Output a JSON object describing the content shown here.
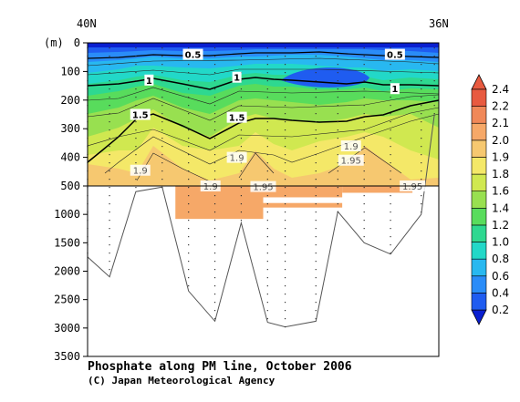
{
  "chart_data": {
    "type": "heatmap",
    "title": "Phosphate along PM line, October 2006",
    "credit": "(C) Japan Meteorological Agency",
    "x_axis": {
      "left_label": "40N",
      "right_label": "36N",
      "range_lat": [
        40,
        36
      ]
    },
    "y_axis": {
      "unit_label": "(m)",
      "upper_ticks": [
        "0",
        "100",
        "200",
        "300",
        "400",
        "500"
      ],
      "upper_range": [
        0,
        500
      ],
      "lower_ticks": [
        "1000",
        "1500",
        "2000",
        "2500",
        "3000",
        "3500"
      ],
      "lower_range": [
        500,
        3500
      ]
    },
    "colorbar": {
      "levels": [
        "0.2",
        "0.4",
        "0.6",
        "0.8",
        "1.0",
        "1.2",
        "1.4",
        "1.6",
        "1.8",
        "1.9",
        "2.0",
        "2.1",
        "2.2",
        "2.4"
      ],
      "colors": [
        "#0a1fd0",
        "#1f5cf0",
        "#2a8cf8",
        "#28b8f0",
        "#22d8c8",
        "#2ed890",
        "#58dc5c",
        "#98e050",
        "#d0e850",
        "#f4e868",
        "#f6c870",
        "#f6a868",
        "#f08858",
        "#e85a40"
      ],
      "has_min_arrow": true,
      "has_max_arrow": true
    },
    "contour_labels": [
      {
        "text": "0.5",
        "lat": 38.8,
        "depth": 40
      },
      {
        "text": "0.5",
        "lat": 36.5,
        "depth": 40
      },
      {
        "text": "1",
        "lat": 39.3,
        "depth": 130
      },
      {
        "text": "1",
        "lat": 38.3,
        "depth": 120
      },
      {
        "text": "1",
        "lat": 36.5,
        "depth": 160
      },
      {
        "text": "1.5",
        "lat": 39.4,
        "depth": 250
      },
      {
        "text": "1.5",
        "lat": 38.3,
        "depth": 260
      },
      {
        "text": "1.9",
        "lat": 39.4,
        "depth": 445
      },
      {
        "text": "1.9",
        "lat": 38.3,
        "depth": 400
      },
      {
        "text": "1.9",
        "lat": 37.0,
        "depth": 360
      },
      {
        "text": "1.95",
        "lat": 37.0,
        "depth": 410
      },
      {
        "text": "1.9",
        "lat": 38.6,
        "depth": 500
      },
      {
        "text": "1.95",
        "lat": 38.0,
        "depth": 510
      },
      {
        "text": "1.95",
        "lat": 36.3,
        "depth": 500
      }
    ],
    "bottom_profile": [
      {
        "lat": 40.0,
        "depth": 1750
      },
      {
        "lat": 39.75,
        "depth": 2100
      },
      {
        "lat": 39.45,
        "depth": 600
      },
      {
        "lat": 39.15,
        "depth": 520
      },
      {
        "lat": 38.85,
        "depth": 2350
      },
      {
        "lat": 38.55,
        "depth": 2880
      },
      {
        "lat": 38.25,
        "depth": 1150
      },
      {
        "lat": 37.95,
        "depth": 2900
      },
      {
        "lat": 37.75,
        "depth": 2980
      },
      {
        "lat": 37.4,
        "depth": 2880
      },
      {
        "lat": 37.15,
        "depth": 950
      },
      {
        "lat": 36.85,
        "depth": 1500
      },
      {
        "lat": 36.55,
        "depth": 1700
      },
      {
        "lat": 36.2,
        "depth": 1000
      },
      {
        "lat": 36.05,
        "depth": 250
      }
    ],
    "deep_patches": [
      {
        "lat_from": 39.0,
        "lat_to": 38.0,
        "depth_from": 500,
        "depth_to": 1080,
        "value": 1.95
      },
      {
        "lat_from": 38.0,
        "lat_to": 37.1,
        "depth_from": 500,
        "depth_to": 700,
        "value": 1.95
      },
      {
        "lat_from": 38.0,
        "lat_to": 37.1,
        "depth_from": 800,
        "depth_to": 880,
        "value": 1.95
      },
      {
        "lat_from": 37.1,
        "lat_to": 36.3,
        "depth_from": 500,
        "depth_to": 620,
        "value": 1.95
      }
    ]
  }
}
